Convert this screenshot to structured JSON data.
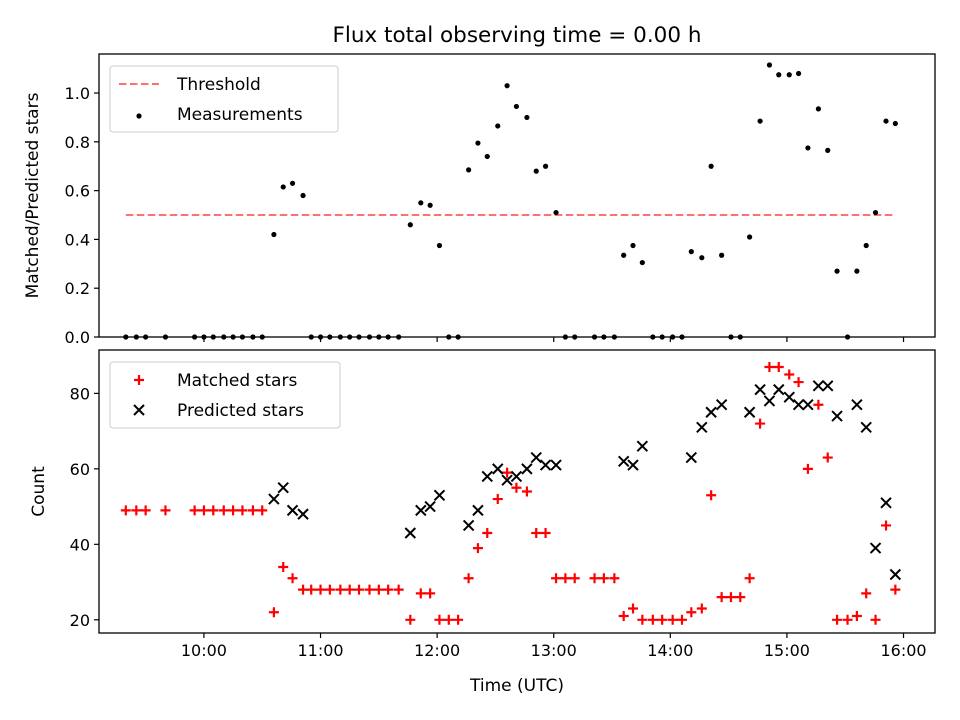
{
  "figure": {
    "title": "Flux total observing time = 0.00 h",
    "xlabel": "Time (UTC)"
  },
  "chart_data": [
    {
      "type": "scatter",
      "title": "Flux total observing time = 0.00 h",
      "xlabel": "",
      "ylabel": "Matched/Predicted stars",
      "x_unit": "hours UTC",
      "xlim": [
        9.1,
        16.27
      ],
      "ylim": [
        0,
        1.16
      ],
      "xticks": [
        10,
        11,
        12,
        13,
        14,
        15,
        16
      ],
      "xtick_labels": [],
      "yticks": [
        0.0,
        0.2,
        0.4,
        0.6,
        0.8,
        1.0
      ],
      "ytick_labels": [
        "0.0",
        "0.2",
        "0.4",
        "0.6",
        "0.8",
        "1.0"
      ],
      "grid": false,
      "legend_position": "upper left",
      "threshold": {
        "name": "Threshold",
        "value": 0.5,
        "x_range": [
          9.33,
          15.92
        ],
        "color": "#ff7070",
        "style": "dashed"
      },
      "series": [
        {
          "name": "Measurements",
          "color": "#000000",
          "marker": "dot",
          "points": [
            [
              9.33,
              0
            ],
            [
              9.42,
              0
            ],
            [
              9.5,
              0
            ],
            [
              9.67,
              0
            ],
            [
              9.92,
              0
            ],
            [
              10.0,
              0
            ],
            [
              10.08,
              0
            ],
            [
              10.17,
              0
            ],
            [
              10.25,
              0
            ],
            [
              10.33,
              0
            ],
            [
              10.42,
              0
            ],
            [
              10.5,
              0
            ],
            [
              10.6,
              0.42
            ],
            [
              10.68,
              0.615
            ],
            [
              10.76,
              0.63
            ],
            [
              10.85,
              0.58
            ],
            [
              10.92,
              0
            ],
            [
              11.0,
              0
            ],
            [
              11.08,
              0
            ],
            [
              11.17,
              0
            ],
            [
              11.25,
              0
            ],
            [
              11.33,
              0
            ],
            [
              11.42,
              0
            ],
            [
              11.5,
              0
            ],
            [
              11.58,
              0
            ],
            [
              11.67,
              0
            ],
            [
              11.77,
              0.46
            ],
            [
              11.86,
              0.55
            ],
            [
              11.94,
              0.54
            ],
            [
              12.02,
              0.375
            ],
            [
              12.1,
              0
            ],
            [
              12.18,
              0
            ],
            [
              12.27,
              0.685
            ],
            [
              12.35,
              0.795
            ],
            [
              12.43,
              0.74
            ],
            [
              12.52,
              0.865
            ],
            [
              12.6,
              1.03
            ],
            [
              12.68,
              0.945
            ],
            [
              12.77,
              0.9
            ],
            [
              12.85,
              0.68
            ],
            [
              12.93,
              0.7
            ],
            [
              13.02,
              0.51
            ],
            [
              13.1,
              0
            ],
            [
              13.18,
              0
            ],
            [
              13.35,
              0
            ],
            [
              13.43,
              0
            ],
            [
              13.52,
              0
            ],
            [
              13.6,
              0.335
            ],
            [
              13.68,
              0.375
            ],
            [
              13.76,
              0.305
            ],
            [
              13.85,
              0
            ],
            [
              13.93,
              0
            ],
            [
              14.02,
              0
            ],
            [
              14.1,
              0
            ],
            [
              14.18,
              0.35
            ],
            [
              14.27,
              0.325
            ],
            [
              14.35,
              0.7
            ],
            [
              14.44,
              0.335
            ],
            [
              14.52,
              0
            ],
            [
              14.6,
              0
            ],
            [
              14.68,
              0.41
            ],
            [
              14.77,
              0.885
            ],
            [
              14.85,
              1.115
            ],
            [
              14.93,
              1.075
            ],
            [
              15.02,
              1.075
            ],
            [
              15.1,
              1.08
            ],
            [
              15.18,
              0.775
            ],
            [
              15.27,
              0.935
            ],
            [
              15.35,
              0.765
            ],
            [
              15.43,
              0.27
            ],
            [
              15.52,
              0
            ],
            [
              15.6,
              0.27
            ],
            [
              15.68,
              0.375
            ],
            [
              15.76,
              0.51
            ],
            [
              15.85,
              0.885
            ],
            [
              15.93,
              0.875
            ]
          ]
        }
      ]
    },
    {
      "type": "scatter",
      "title": "",
      "xlabel": "Time (UTC)",
      "ylabel": "Count",
      "x_unit": "hours UTC",
      "xlim": [
        9.1,
        16.27
      ],
      "ylim": [
        16.5,
        91.5
      ],
      "xticks": [
        10,
        11,
        12,
        13,
        14,
        15,
        16
      ],
      "xtick_labels": [
        "10:00",
        "11:00",
        "12:00",
        "13:00",
        "14:00",
        "15:00",
        "16:00"
      ],
      "yticks": [
        20,
        40,
        60,
        80
      ],
      "ytick_labels": [
        "20",
        "40",
        "60",
        "80"
      ],
      "grid": false,
      "legend_position": "upper left",
      "series": [
        {
          "name": "Matched stars",
          "color": "#ff0000",
          "marker": "plus",
          "points": [
            [
              9.33,
              49
            ],
            [
              9.42,
              49
            ],
            [
              9.5,
              49
            ],
            [
              9.67,
              49
            ],
            [
              9.92,
              49
            ],
            [
              10.0,
              49
            ],
            [
              10.08,
              49
            ],
            [
              10.17,
              49
            ],
            [
              10.25,
              49
            ],
            [
              10.33,
              49
            ],
            [
              10.42,
              49
            ],
            [
              10.5,
              49
            ],
            [
              10.6,
              22
            ],
            [
              10.68,
              34
            ],
            [
              10.76,
              31
            ],
            [
              10.85,
              28
            ],
            [
              10.92,
              28
            ],
            [
              11.0,
              28
            ],
            [
              11.08,
              28
            ],
            [
              11.17,
              28
            ],
            [
              11.25,
              28
            ],
            [
              11.33,
              28
            ],
            [
              11.42,
              28
            ],
            [
              11.5,
              28
            ],
            [
              11.58,
              28
            ],
            [
              11.67,
              28
            ],
            [
              11.77,
              20
            ],
            [
              11.86,
              27
            ],
            [
              11.94,
              27
            ],
            [
              12.02,
              20
            ],
            [
              12.1,
              20
            ],
            [
              12.18,
              20
            ],
            [
              12.27,
              31
            ],
            [
              12.35,
              39
            ],
            [
              12.43,
              43
            ],
            [
              12.52,
              52
            ],
            [
              12.6,
              59
            ],
            [
              12.68,
              55
            ],
            [
              12.77,
              54
            ],
            [
              12.85,
              43
            ],
            [
              12.93,
              43
            ],
            [
              13.02,
              31
            ],
            [
              13.1,
              31
            ],
            [
              13.18,
              31
            ],
            [
              13.35,
              31
            ],
            [
              13.43,
              31
            ],
            [
              13.52,
              31
            ],
            [
              13.6,
              21
            ],
            [
              13.68,
              23
            ],
            [
              13.76,
              20
            ],
            [
              13.85,
              20
            ],
            [
              13.93,
              20
            ],
            [
              14.02,
              20
            ],
            [
              14.1,
              20
            ],
            [
              14.18,
              22
            ],
            [
              14.27,
              23
            ],
            [
              14.35,
              53
            ],
            [
              14.44,
              26
            ],
            [
              14.52,
              26
            ],
            [
              14.6,
              26
            ],
            [
              14.68,
              31
            ],
            [
              14.77,
              72
            ],
            [
              14.85,
              87
            ],
            [
              14.93,
              87
            ],
            [
              15.02,
              85
            ],
            [
              15.1,
              83
            ],
            [
              15.18,
              60
            ],
            [
              15.27,
              77
            ],
            [
              15.35,
              63
            ],
            [
              15.43,
              20
            ],
            [
              15.52,
              20
            ],
            [
              15.6,
              21
            ],
            [
              15.68,
              27
            ],
            [
              15.76,
              20
            ],
            [
              15.85,
              45
            ],
            [
              15.93,
              28
            ]
          ]
        },
        {
          "name": "Predicted stars",
          "color": "#000000",
          "marker": "x",
          "points": [
            [
              10.6,
              52
            ],
            [
              10.68,
              55
            ],
            [
              10.76,
              49
            ],
            [
              10.85,
              48
            ],
            [
              11.77,
              43
            ],
            [
              11.86,
              49
            ],
            [
              11.94,
              50
            ],
            [
              12.02,
              53
            ],
            [
              12.27,
              45
            ],
            [
              12.35,
              49
            ],
            [
              12.43,
              58
            ],
            [
              12.52,
              60
            ],
            [
              12.6,
              57
            ],
            [
              12.68,
              58
            ],
            [
              12.77,
              60
            ],
            [
              12.85,
              63
            ],
            [
              12.93,
              61
            ],
            [
              13.02,
              61
            ],
            [
              13.6,
              62
            ],
            [
              13.68,
              61
            ],
            [
              13.76,
              66
            ],
            [
              14.18,
              63
            ],
            [
              14.27,
              71
            ],
            [
              14.35,
              75
            ],
            [
              14.44,
              77
            ],
            [
              14.68,
              75
            ],
            [
              14.77,
              81
            ],
            [
              14.85,
              78
            ],
            [
              14.93,
              81
            ],
            [
              15.02,
              79
            ],
            [
              15.1,
              77
            ],
            [
              15.18,
              77
            ],
            [
              15.27,
              82
            ],
            [
              15.35,
              82
            ],
            [
              15.43,
              74
            ],
            [
              15.6,
              77
            ],
            [
              15.68,
              71
            ],
            [
              15.76,
              39
            ],
            [
              15.85,
              51
            ],
            [
              15.93,
              32
            ]
          ]
        }
      ]
    }
  ]
}
